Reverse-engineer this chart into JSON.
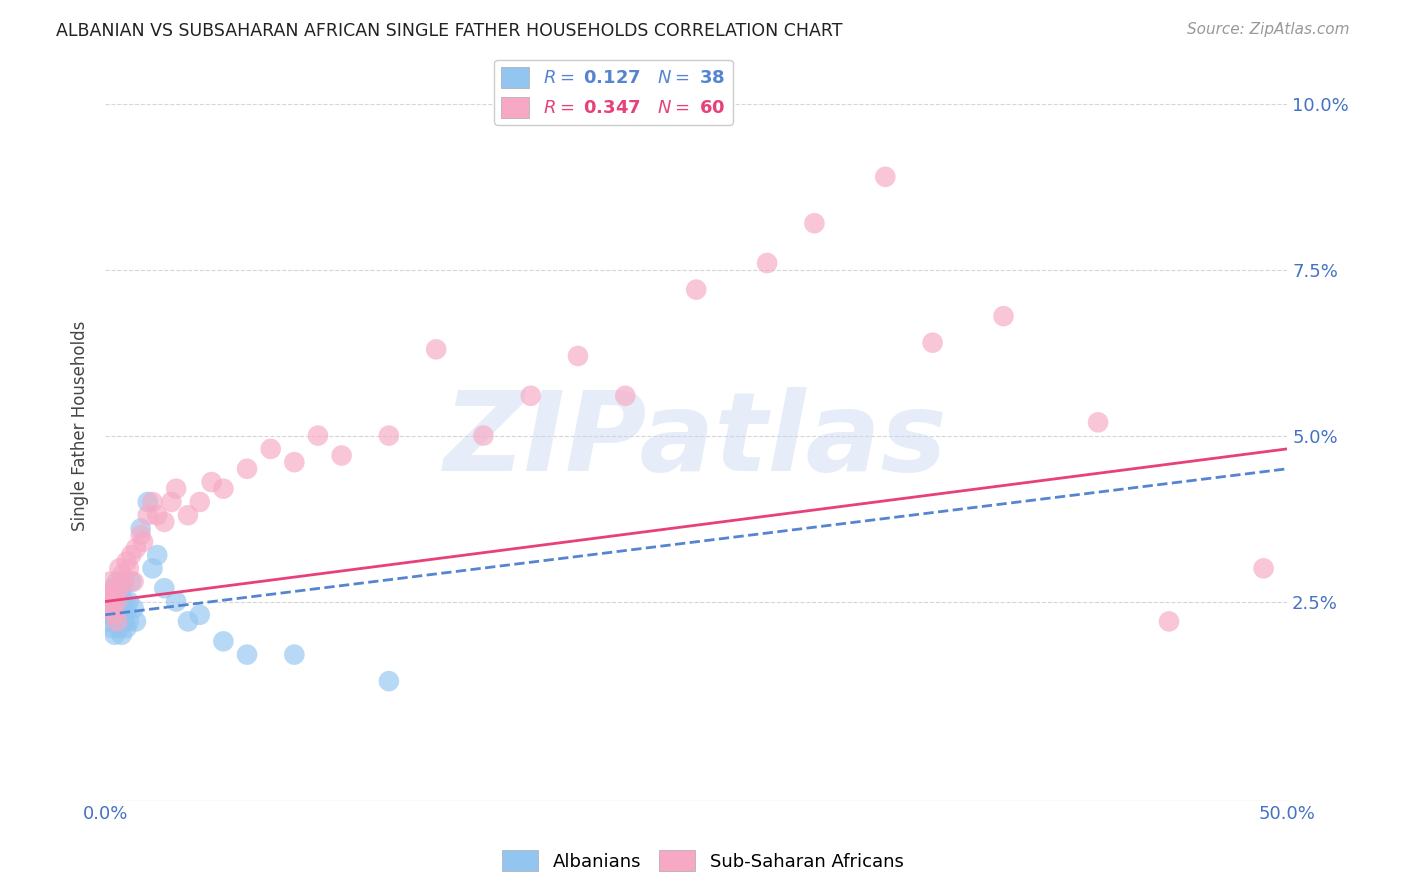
{
  "title": "ALBANIAN VS SUBSAHARAN AFRICAN SINGLE FATHER HOUSEHOLDS CORRELATION CHART",
  "source": "Source: ZipAtlas.com",
  "ylabel": "Single Father Households",
  "xlim": [
    0.0,
    0.5
  ],
  "ylim": [
    -0.005,
    0.108
  ],
  "yticks": [
    0.025,
    0.05,
    0.075,
    0.1
  ],
  "ytick_labels": [
    "2.5%",
    "5.0%",
    "7.5%",
    "10.0%"
  ],
  "xticks": [
    0.0,
    0.1,
    0.2,
    0.3,
    0.4,
    0.5
  ],
  "xtick_labels": [
    "0.0%",
    "",
    "",
    "",
    "",
    "50.0%"
  ],
  "albanian_color": "#92C5F0",
  "subsaharan_color": "#F7A8C4",
  "albanian_line_color": "#5585D0",
  "subsaharan_line_color": "#E8407A",
  "watermark_text": "ZIPatlas",
  "background_color": "#ffffff",
  "grid_color": "#cccccc",
  "tick_label_color": "#4472C4",
  "title_color": "#222222",
  "source_color": "#999999",
  "ylabel_color": "#444444",
  "albanian_x": [
    0.001,
    0.002,
    0.002,
    0.003,
    0.003,
    0.003,
    0.004,
    0.004,
    0.004,
    0.005,
    0.005,
    0.005,
    0.006,
    0.006,
    0.007,
    0.007,
    0.007,
    0.008,
    0.008,
    0.009,
    0.009,
    0.01,
    0.01,
    0.011,
    0.012,
    0.013,
    0.015,
    0.018,
    0.02,
    0.022,
    0.025,
    0.03,
    0.035,
    0.04,
    0.05,
    0.06,
    0.08,
    0.12
  ],
  "albanian_y": [
    0.022,
    0.023,
    0.025,
    0.021,
    0.024,
    0.026,
    0.02,
    0.023,
    0.027,
    0.022,
    0.025,
    0.028,
    0.021,
    0.024,
    0.02,
    0.023,
    0.027,
    0.022,
    0.025,
    0.021,
    0.024,
    0.022,
    0.025,
    0.028,
    0.024,
    0.022,
    0.036,
    0.04,
    0.03,
    0.032,
    0.027,
    0.025,
    0.022,
    0.023,
    0.019,
    0.017,
    0.017,
    0.013
  ],
  "subsaharan_x": [
    0.001,
    0.002,
    0.002,
    0.003,
    0.003,
    0.004,
    0.004,
    0.005,
    0.005,
    0.006,
    0.006,
    0.007,
    0.008,
    0.009,
    0.01,
    0.011,
    0.012,
    0.013,
    0.015,
    0.016,
    0.018,
    0.02,
    0.022,
    0.025,
    0.028,
    0.03,
    0.035,
    0.04,
    0.045,
    0.05,
    0.06,
    0.07,
    0.08,
    0.09,
    0.1,
    0.12,
    0.14,
    0.16,
    0.18,
    0.2,
    0.22,
    0.25,
    0.28,
    0.3,
    0.33,
    0.35,
    0.38,
    0.42,
    0.45,
    0.49
  ],
  "subsaharan_y": [
    0.026,
    0.025,
    0.028,
    0.024,
    0.027,
    0.023,
    0.026,
    0.022,
    0.025,
    0.027,
    0.03,
    0.029,
    0.028,
    0.031,
    0.03,
    0.032,
    0.028,
    0.033,
    0.035,
    0.034,
    0.038,
    0.04,
    0.038,
    0.037,
    0.04,
    0.042,
    0.038,
    0.04,
    0.043,
    0.042,
    0.045,
    0.048,
    0.046,
    0.05,
    0.047,
    0.05,
    0.063,
    0.05,
    0.056,
    0.062,
    0.056,
    0.072,
    0.076,
    0.082,
    0.089,
    0.064,
    0.068,
    0.052,
    0.022,
    0.03
  ]
}
